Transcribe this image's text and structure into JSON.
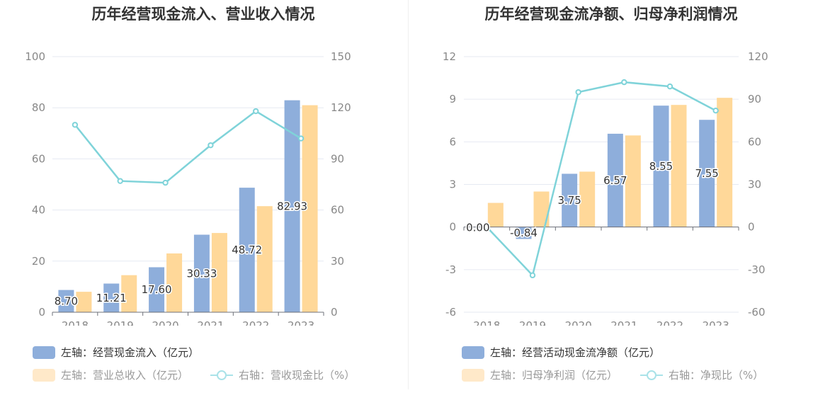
{
  "chart_data": [
    {
      "type": "bar",
      "title": "历年经营现金流入、营业收入情况",
      "categories": [
        "2018",
        "2019",
        "2020",
        "2021",
        "2022",
        "2023"
      ],
      "y_left": {
        "min": 0,
        "max": 100,
        "ticks": [
          "0",
          "20",
          "40",
          "60",
          "80",
          "100"
        ]
      },
      "y_right": {
        "min": 0,
        "max": 150,
        "ticks": [
          "0",
          "30",
          "60",
          "90",
          "120",
          "150"
        ]
      },
      "series": [
        {
          "name": "左轴：经营现金流入（亿元）",
          "type": "bar",
          "axis": "left",
          "color": "#8eaedb",
          "values": [
            8.7,
            11.21,
            17.6,
            30.33,
            48.72,
            82.93
          ],
          "labels": [
            "8.70",
            "11.21",
            "17.60",
            "30.33",
            "48.72",
            "82.93"
          ]
        },
        {
          "name": "左轴：营业总收入（亿元）",
          "type": "bar",
          "axis": "left",
          "color": "#ffd899",
          "values": [
            8.0,
            14.5,
            23.0,
            31.0,
            41.5,
            81.0
          ]
        },
        {
          "name": "右轴：营收现金比（%）",
          "type": "line",
          "axis": "right",
          "color": "#7fd3d9",
          "values": [
            110,
            77,
            76,
            98,
            118,
            102
          ]
        }
      ],
      "grid": true
    },
    {
      "type": "bar",
      "title": "历年经营现金流净额、归母净利润情况",
      "categories": [
        "2018",
        "2019",
        "2020",
        "2021",
        "2022",
        "2023"
      ],
      "y_left": {
        "min": -6,
        "max": 12,
        "ticks": [
          "-6",
          "-3",
          "0",
          "3",
          "6",
          "9",
          "12"
        ]
      },
      "y_right": {
        "min": -60,
        "max": 120,
        "ticks": [
          "-60",
          "-30",
          "0",
          "30",
          "60",
          "90",
          "120"
        ]
      },
      "series": [
        {
          "name": "左轴：经营活动现金流净额（亿元）",
          "type": "bar",
          "axis": "left",
          "color": "#8eaedb",
          "values": [
            0.0,
            -0.84,
            3.75,
            6.57,
            8.55,
            7.55
          ],
          "labels": [
            "0.00",
            "-0.84",
            "3.75",
            "6.57",
            "8.55",
            "7.55"
          ]
        },
        {
          "name": "左轴：归母净利润（亿元）",
          "type": "bar",
          "axis": "left",
          "color": "#ffd899",
          "values": [
            1.7,
            2.5,
            3.9,
            6.45,
            8.6,
            9.1
          ]
        },
        {
          "name": "右轴：净现比（%）",
          "type": "line",
          "axis": "right",
          "color": "#7fd3d9",
          "values": [
            0,
            -34,
            95,
            102,
            99,
            82
          ]
        }
      ],
      "grid": true
    }
  ]
}
